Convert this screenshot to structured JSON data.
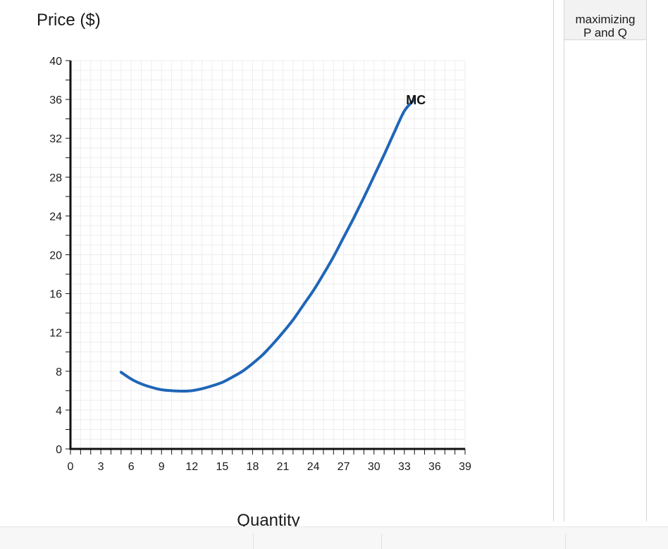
{
  "chart_data": {
    "type": "line",
    "ylabel": "Price ($)",
    "xlabel": "Quantity",
    "xlim": [
      0,
      39
    ],
    "ylim": [
      0,
      40
    ],
    "x_ticks": [
      0,
      3,
      6,
      9,
      12,
      15,
      18,
      21,
      24,
      27,
      30,
      33,
      36,
      39
    ],
    "y_ticks": [
      0,
      4,
      8,
      12,
      16,
      20,
      24,
      28,
      32,
      36,
      40
    ],
    "grid": true,
    "series": [
      {
        "name": "MC",
        "color": "#1f66b8",
        "points": [
          [
            5,
            7.9
          ],
          [
            6,
            7.2
          ],
          [
            7,
            6.7
          ],
          [
            8,
            6.35
          ],
          [
            9,
            6.1
          ],
          [
            10,
            6.0
          ],
          [
            11,
            5.95
          ],
          [
            12,
            6.0
          ],
          [
            13,
            6.2
          ],
          [
            14,
            6.5
          ],
          [
            15,
            6.85
          ],
          [
            16,
            7.4
          ],
          [
            17,
            8.0
          ],
          [
            18,
            8.8
          ],
          [
            19,
            9.7
          ],
          [
            20,
            10.8
          ],
          [
            21,
            12.0
          ],
          [
            22,
            13.3
          ],
          [
            23,
            14.8
          ],
          [
            24,
            16.3
          ],
          [
            25,
            18.0
          ],
          [
            26,
            19.8
          ],
          [
            27,
            21.8
          ],
          [
            28,
            23.8
          ],
          [
            29,
            25.9
          ],
          [
            30,
            28.1
          ],
          [
            31,
            30.3
          ],
          [
            32,
            32.6
          ],
          [
            33,
            34.8
          ],
          [
            34,
            36.0
          ]
        ]
      }
    ]
  },
  "side_panel": {
    "header_line1": "maximizing",
    "header_line2": "P and Q"
  }
}
